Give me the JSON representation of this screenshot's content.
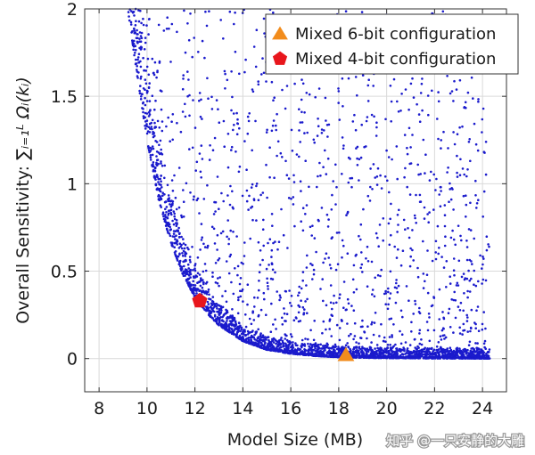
{
  "chart_data": {
    "type": "scatter",
    "title": "",
    "xlabel": "Model Size (MB)",
    "ylabel_prefix": "Overall Sensitivity: ",
    "ylabel_math": "∑ᵢ₌₁ᴸ Ωᵢ(kᵢ)",
    "xlim": [
      7.4,
      25
    ],
    "ylim": [
      -0.19,
      2
    ],
    "xticks": [
      8,
      10,
      12,
      14,
      16,
      18,
      20,
      22,
      24
    ],
    "xtick_labels": [
      "8",
      "10",
      "12",
      "14",
      "16",
      "18",
      "20",
      "22",
      "24"
    ],
    "yticks": [
      0,
      0.5,
      1,
      1.5,
      2
    ],
    "ytick_labels": [
      "0",
      "0.5",
      "1",
      "1.5",
      "2"
    ],
    "grid": true,
    "legend_position": "top-right",
    "series": [
      {
        "kind": "cloud",
        "color": "#1a1acc",
        "marker": "dot",
        "frontier_x": [
          9.2,
          9.5,
          10,
          10.5,
          11,
          11.5,
          12,
          12.5,
          13,
          14,
          15,
          16,
          17,
          18,
          19,
          20,
          21,
          22,
          23,
          24.3
        ],
        "frontier_y": [
          2.0,
          1.7,
          1.25,
          0.9,
          0.66,
          0.48,
          0.35,
          0.26,
          0.19,
          0.1,
          0.05,
          0.028,
          0.015,
          0.008,
          0.005,
          0.003,
          0.002,
          0.001,
          0.001,
          0.0
        ],
        "x_range": [
          9.0,
          24.3
        ]
      },
      {
        "name": "Mixed 6-bit configuration",
        "color": "#f28c1c",
        "marker": "triangle",
        "x": [
          18.3
        ],
        "y": [
          0.02
        ]
      },
      {
        "name": "Mixed 4-bit configuration",
        "color": "#e8161c",
        "marker": "pentagon",
        "x": [
          12.2
        ],
        "y": [
          0.33
        ]
      }
    ]
  },
  "watermark": "知乎 @一只安静的大雕"
}
